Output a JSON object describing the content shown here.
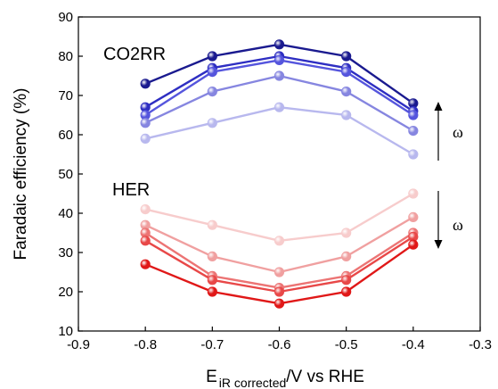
{
  "chart_data": {
    "type": "line",
    "xlabel": {
      "main": "E",
      "subscript": "iR corrected",
      "rest": "/V vs RHE"
    },
    "ylabel": "Faradaic efficiency (%)",
    "xlim": [
      -0.9,
      -0.3
    ],
    "ylim": [
      10,
      90
    ],
    "x_ticks": [
      -0.9,
      -0.8,
      -0.7,
      -0.6,
      -0.5,
      -0.4,
      -0.3
    ],
    "x_tick_labels": [
      "-0.9",
      "-0.8",
      "-0.7",
      "-0.6",
      "-0.5",
      "-0.4",
      "-0.3"
    ],
    "y_ticks": [
      10,
      20,
      30,
      40,
      50,
      60,
      70,
      80,
      90
    ],
    "y_tick_labels": [
      "10",
      "20",
      "30",
      "40",
      "50",
      "60",
      "70",
      "80",
      "90"
    ],
    "grid": false,
    "x": [
      -0.8,
      -0.7,
      -0.6,
      -0.5,
      -0.4
    ],
    "series": [
      {
        "group": "CO2RR",
        "color": "#1a1a8f",
        "values": [
          73,
          80,
          83,
          80,
          68
        ]
      },
      {
        "group": "CO2RR",
        "color": "#2e2ec2",
        "values": [
          67,
          77,
          80,
          77,
          66
        ]
      },
      {
        "group": "CO2RR",
        "color": "#5555dd",
        "values": [
          65,
          76,
          79,
          76,
          65
        ]
      },
      {
        "group": "CO2RR",
        "color": "#8686e0",
        "values": [
          63,
          71,
          75,
          71,
          61
        ]
      },
      {
        "group": "CO2RR",
        "color": "#b8b8ee",
        "values": [
          59,
          63,
          67,
          65,
          55
        ]
      },
      {
        "group": "HER",
        "color": "#f7cccc",
        "values": [
          41,
          37,
          33,
          35,
          45
        ]
      },
      {
        "group": "HER",
        "color": "#f0a0a0",
        "values": [
          37,
          29,
          25,
          29,
          39
        ]
      },
      {
        "group": "HER",
        "color": "#ec7474",
        "values": [
          35,
          24,
          21,
          24,
          35
        ]
      },
      {
        "group": "HER",
        "color": "#e84848",
        "values": [
          33,
          23,
          20,
          23,
          34
        ]
      },
      {
        "group": "HER",
        "color": "#e01818",
        "values": [
          27,
          20,
          17,
          20,
          32
        ]
      }
    ],
    "annotations": {
      "co2rr_label": "CO2RR",
      "her_label": "HER",
      "omega_upper": "ω",
      "omega_lower": "ω"
    }
  }
}
